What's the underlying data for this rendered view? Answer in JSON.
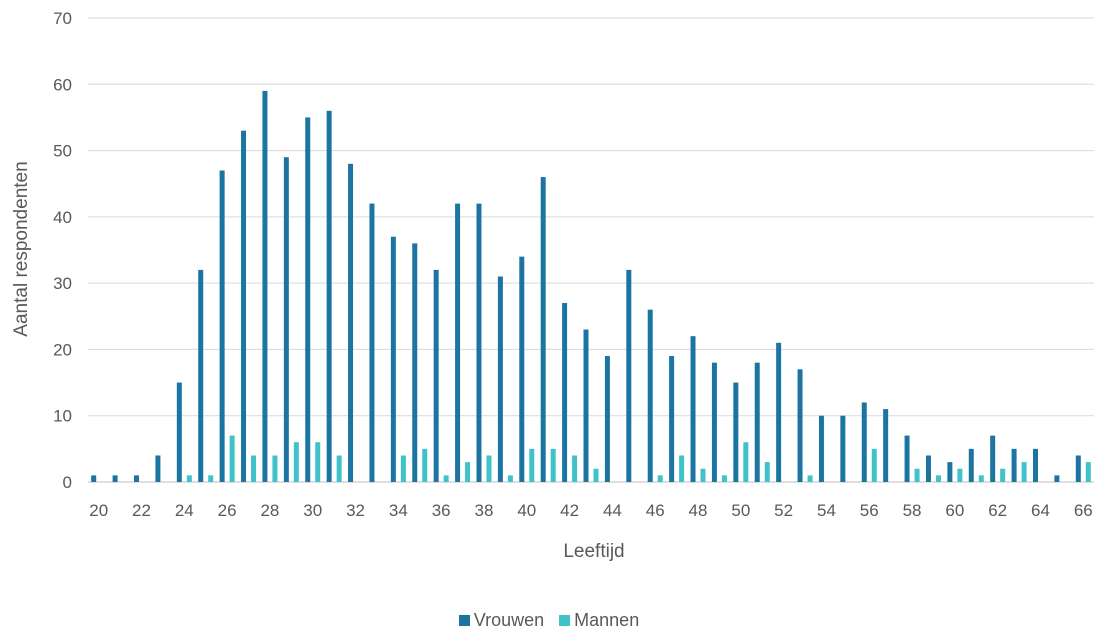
{
  "chart_data": {
    "type": "bar",
    "xlabel": "Leeftijd",
    "ylabel": "Aantal respondenten",
    "ylim": [
      0,
      70
    ],
    "yticks": [
      "0",
      "10",
      "20",
      "30",
      "40",
      "50",
      "60",
      "70"
    ],
    "grid": true,
    "legend_position": "bottom",
    "categories": [
      20,
      21,
      22,
      23,
      24,
      25,
      26,
      27,
      28,
      29,
      30,
      31,
      32,
      33,
      34,
      35,
      36,
      37,
      38,
      39,
      40,
      41,
      42,
      43,
      44,
      45,
      46,
      47,
      48,
      49,
      50,
      51,
      52,
      53,
      54,
      55,
      56,
      57,
      58,
      59,
      60,
      61,
      62,
      63,
      64,
      65,
      66
    ],
    "xtick_labels": [
      "20",
      "22",
      "24",
      "26",
      "28",
      "30",
      "32",
      "34",
      "36",
      "38",
      "40",
      "42",
      "44",
      "46",
      "48",
      "50",
      "52",
      "54",
      "56",
      "58",
      "60",
      "62",
      "64",
      "66"
    ],
    "series": [
      {
        "name": "Vrouwen",
        "color": "#1b75a0",
        "values": [
          1,
          1,
          1,
          4,
          15,
          32,
          47,
          53,
          59,
          49,
          55,
          56,
          48,
          42,
          37,
          36,
          32,
          42,
          42,
          31,
          34,
          46,
          27,
          23,
          19,
          32,
          26,
          19,
          22,
          18,
          15,
          18,
          21,
          17,
          10,
          10,
          12,
          11,
          7,
          4,
          3,
          5,
          7,
          5,
          5,
          1,
          4
        ]
      },
      {
        "name": "Mannen",
        "color": "#3fc3c8",
        "values": [
          0,
          0,
          0,
          0,
          1,
          1,
          7,
          4,
          4,
          6,
          6,
          4,
          0,
          0,
          4,
          5,
          1,
          3,
          4,
          1,
          5,
          5,
          4,
          2,
          0,
          0,
          1,
          4,
          2,
          1,
          6,
          3,
          0,
          1,
          0,
          0,
          5,
          0,
          2,
          1,
          2,
          1,
          2,
          3,
          0,
          0,
          3
        ]
      }
    ]
  }
}
